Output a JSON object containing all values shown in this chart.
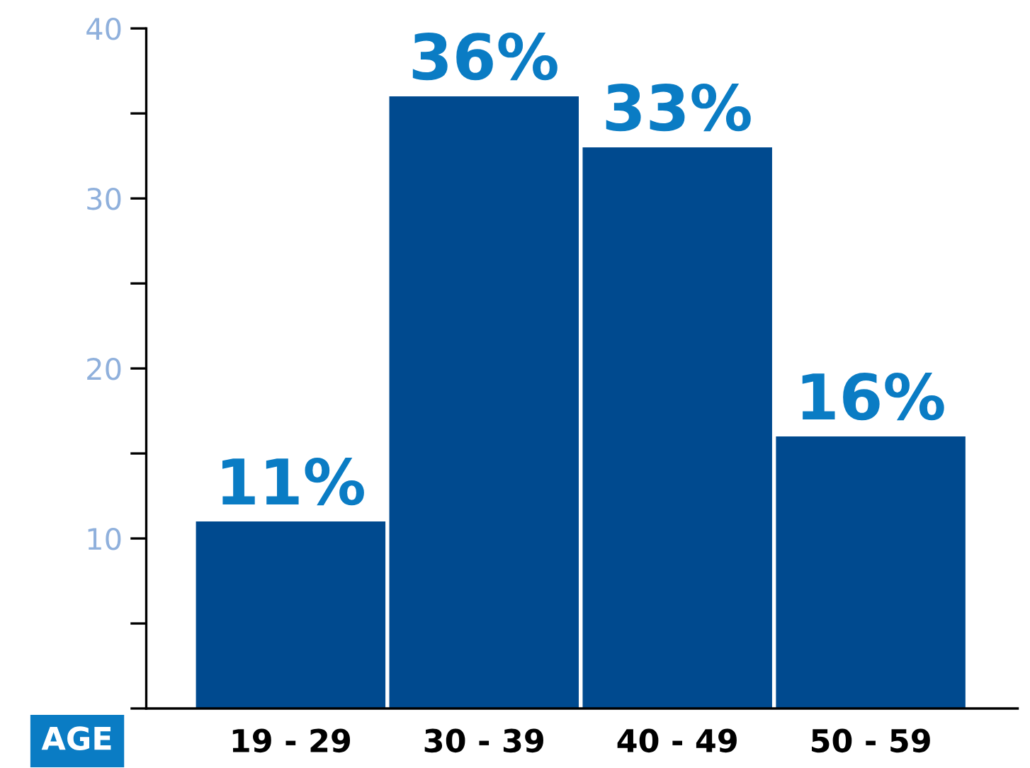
{
  "chart_data": {
    "type": "bar",
    "categories": [
      "19 - 29",
      "30 - 39",
      "40 - 49",
      "50 - 59"
    ],
    "values": [
      11,
      36,
      33,
      16
    ],
    "value_labels": [
      "11%",
      "36%",
      "33%",
      "16%"
    ],
    "color": "#004a8f",
    "xlabel": "AGE",
    "ylim": [
      0,
      40
    ],
    "yticks": [
      {
        "value": 0,
        "label": null
      },
      {
        "value": 5,
        "label": null
      },
      10,
      {
        "value": 15,
        "label": null
      },
      20,
      {
        "value": 25,
        "label": null
      },
      30,
      {
        "value": 35,
        "label": null
      },
      40
    ],
    "grid": false
  }
}
